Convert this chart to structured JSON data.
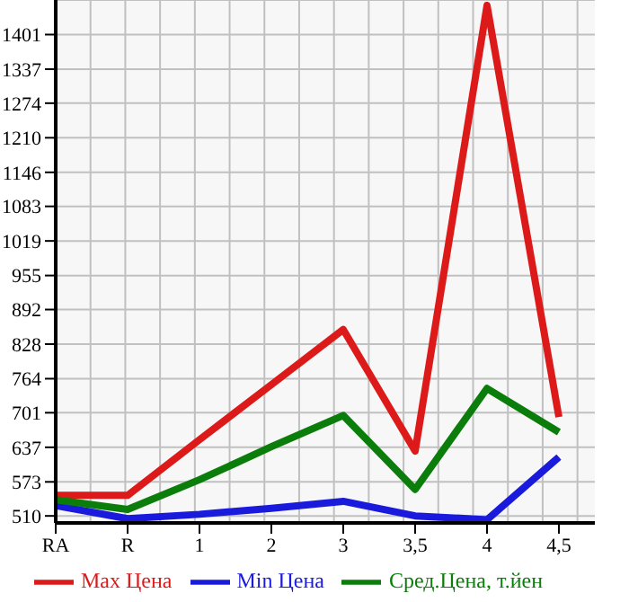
{
  "chart_data": {
    "type": "line",
    "categories": [
      "RA",
      "R",
      "1",
      "2",
      "3",
      "3,5",
      "4",
      "4,5"
    ],
    "series": [
      {
        "name": "Max Цена",
        "color": "#dd1a1a",
        "values": [
          548,
          548,
          651,
          753,
          855,
          630,
          1455,
          693
        ]
      },
      {
        "name": "Min Цена",
        "color": "#1a1add",
        "values": [
          529,
          505,
          513,
          524,
          537,
          510,
          503,
          619
        ]
      },
      {
        "name": "Сред.Цена, т.йен",
        "color": "#0a7d0a",
        "values": [
          540,
          522,
          577,
          638,
          696,
          559,
          746,
          665
        ]
      }
    ],
    "ylim": [
      497,
      1465
    ],
    "yticks": [
      510,
      573,
      637,
      701,
      764,
      828,
      892,
      955,
      1019,
      1083,
      1146,
      1210,
      1274,
      1337,
      1401
    ],
    "grid": true,
    "legend": "bottom",
    "marker": "none",
    "line_style": "solid"
  }
}
